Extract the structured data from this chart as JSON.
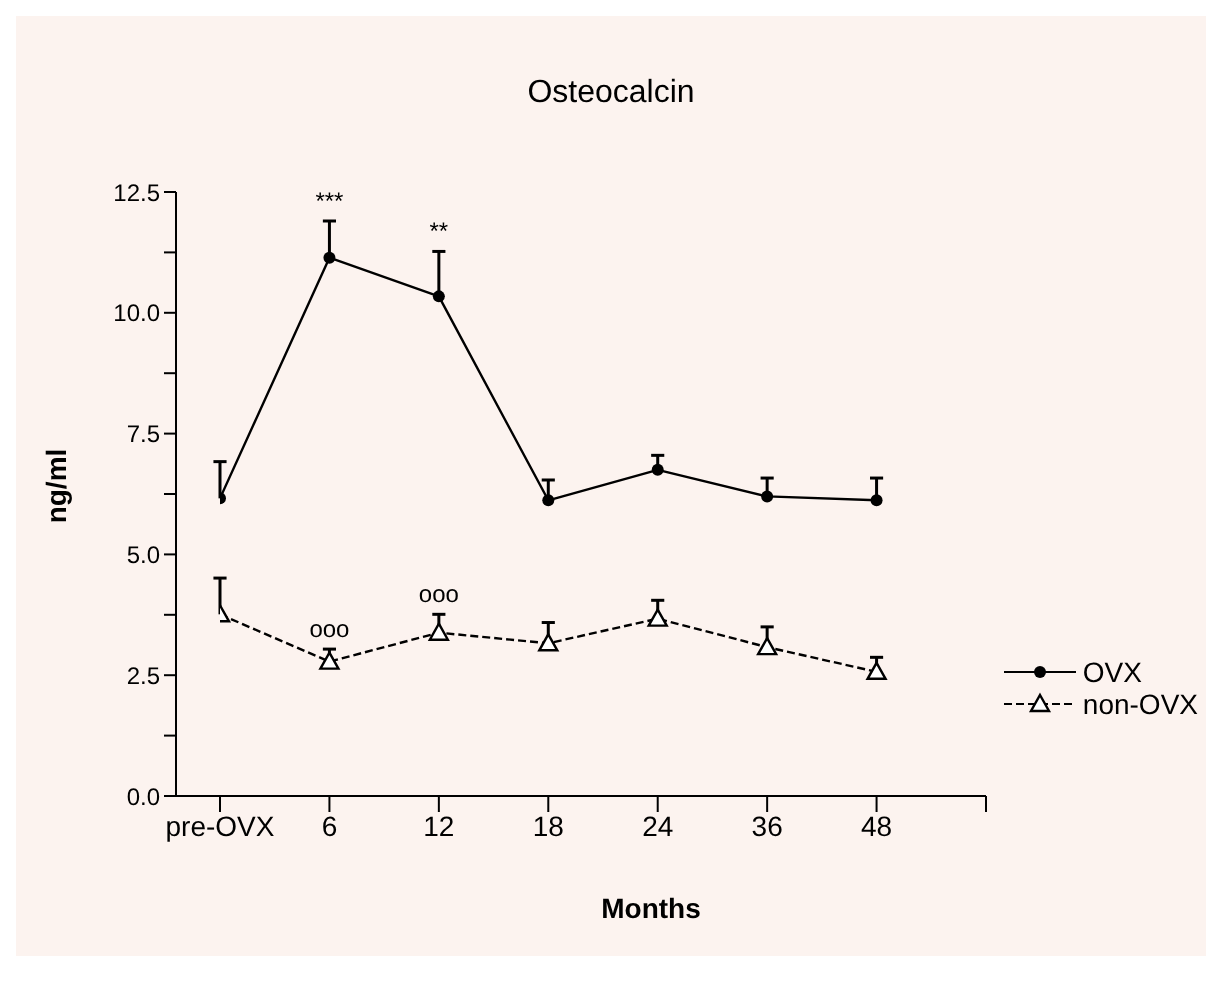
{
  "chart_data": {
    "type": "line",
    "title": "Osteocalcin",
    "xlabel": "Months",
    "ylabel": "ng/ml",
    "categories": [
      "pre-OVX",
      "6",
      "12",
      "18",
      "24",
      "36",
      "48",
      null
    ],
    "series": [
      {
        "name": "OVX",
        "color": "#000000",
        "marker": "circle",
        "line_style": "solid",
        "values": [
          6.16,
          11.14,
          10.34,
          6.12,
          6.75,
          6.2,
          6.12,
          null
        ],
        "errors": [
          [
            6.16,
            6.92
          ],
          [
            11.14,
            11.9
          ],
          [
            10.34,
            11.27
          ],
          [
            6.12,
            6.54
          ],
          [
            6.75,
            7.05
          ],
          [
            6.2,
            6.58
          ],
          [
            6.12,
            6.58
          ],
          null
        ]
      },
      {
        "name": "non-OVX",
        "color": "#000000",
        "marker": "triangle",
        "line_style": "dashed",
        "values": [
          3.76,
          2.78,
          3.38,
          3.16,
          3.67,
          3.08,
          2.57,
          null
        ],
        "errors": [
          [
            3.76,
            4.51
          ],
          [
            2.78,
            3.04
          ],
          [
            3.38,
            3.76
          ],
          [
            3.16,
            3.59
          ],
          [
            3.67,
            4.05
          ],
          [
            3.08,
            3.5
          ],
          [
            2.57,
            2.87
          ],
          null
        ]
      }
    ],
    "ylim": [
      0,
      12.5
    ],
    "yticks": [
      {
        "value": 0,
        "label": "0.0"
      },
      {
        "value": 1.25,
        "label": null
      },
      {
        "value": 2.5,
        "label": "2.5"
      },
      {
        "value": 3.75,
        "label": null
      },
      {
        "value": 5,
        "label": "5.0"
      },
      {
        "value": 6.25,
        "label": null
      },
      {
        "value": 7.5,
        "label": "7.5"
      },
      {
        "value": 8.75,
        "label": null
      },
      {
        "value": 10,
        "label": "10.0"
      },
      {
        "value": 11.25,
        "label": null
      },
      {
        "value": 12.5,
        "label": "12.5"
      }
    ],
    "annotations": [
      {
        "text": "***",
        "x": "6",
        "y": 11.9
      },
      {
        "text": "**",
        "x": "12",
        "y": 11.27
      },
      {
        "text": "ooo",
        "x": "6",
        "y": 3.04
      },
      {
        "text": "ooo",
        "x": "12",
        "y": 3.76
      }
    ],
    "legend": "bottom right",
    "grid": false
  }
}
